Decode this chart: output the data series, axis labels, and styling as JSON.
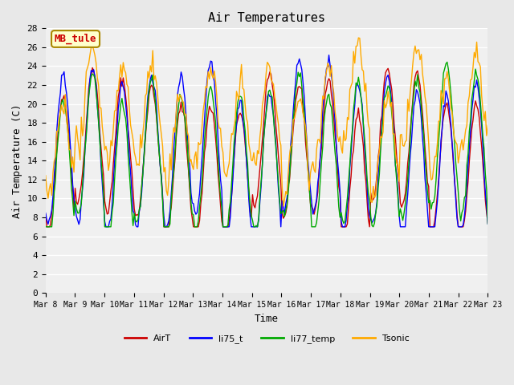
{
  "title": "Air Temperatures",
  "xlabel": "Time",
  "ylabel": "Air Temperature (C)",
  "ylim": [
    0,
    28
  ],
  "yticks": [
    0,
    2,
    4,
    6,
    8,
    10,
    12,
    14,
    16,
    18,
    20,
    22,
    24,
    26,
    28
  ],
  "xtick_labels": [
    "Mar 8",
    "Mar 9",
    "Mar 10",
    "Mar 11",
    "Mar 12",
    "Mar 13",
    "Mar 14",
    "Mar 15",
    "Mar 16",
    "Mar 17",
    "Mar 18",
    "Mar 19",
    "Mar 20",
    "Mar 21",
    "Mar 22",
    "Mar 23"
  ],
  "colors": {
    "AirT": "#cc0000",
    "li75_t": "#0000ff",
    "li77_temp": "#00aa00",
    "Tsonic": "#ffaa00"
  },
  "annotation_text": "MB_tule",
  "annotation_color": "#cc0000",
  "annotation_bg": "#ffffcc",
  "annotation_border": "#aa8800",
  "bg_color": "#e8e8e8",
  "plot_bg": "#f0f0f0",
  "grid_color": "#ffffff",
  "legend_labels": [
    "AirT",
    "li75_t",
    "li77_temp",
    "Tsonic"
  ],
  "n_points": 360,
  "seed": 42
}
